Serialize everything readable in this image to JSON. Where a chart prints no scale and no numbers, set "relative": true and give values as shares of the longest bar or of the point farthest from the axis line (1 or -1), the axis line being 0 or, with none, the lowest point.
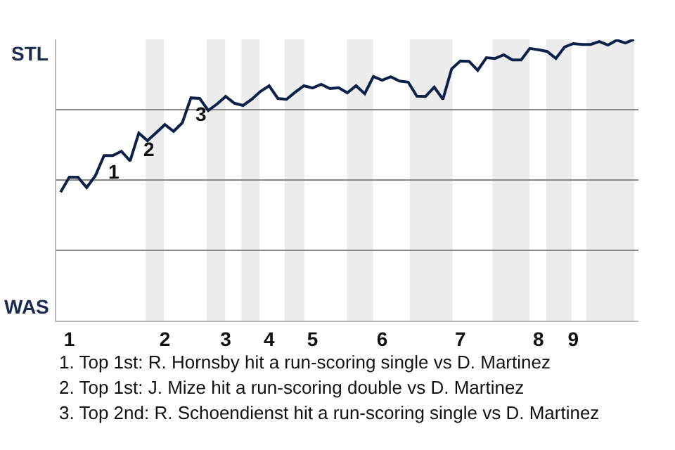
{
  "chart_data": {
    "type": "line",
    "relative": true,
    "categories": [
      null,
      "1",
      null,
      null,
      null,
      null,
      null,
      null,
      null,
      null,
      null,
      null,
      "2",
      null,
      null,
      null,
      null,
      null,
      null,
      "3",
      null,
      null,
      null,
      null,
      "4",
      null,
      null,
      null,
      null,
      "5",
      null,
      null,
      null,
      null,
      null,
      null,
      null,
      "6",
      null,
      null,
      null,
      null,
      null,
      null,
      null,
      null,
      "7",
      null,
      null,
      null,
      null,
      null,
      null,
      null,
      null,
      "8",
      null,
      null,
      null,
      "9",
      null,
      null,
      null,
      null,
      null,
      null,
      null
    ],
    "series": [
      {
        "color": "#0c2048",
        "values": [
          0.457,
          0.51,
          0.51,
          0.473,
          0.515,
          0.587,
          0.587,
          0.602,
          0.568,
          0.667,
          0.64,
          0.668,
          0.697,
          0.673,
          0.703,
          0.792,
          0.79,
          0.747,
          0.77,
          0.797,
          0.773,
          0.765,
          0.787,
          0.815,
          0.835,
          0.79,
          0.787,
          0.812,
          0.835,
          0.827,
          0.84,
          0.825,
          0.828,
          0.81,
          0.835,
          0.807,
          0.868,
          0.855,
          0.867,
          0.852,
          0.848,
          0.798,
          0.797,
          0.83,
          0.787,
          0.895,
          0.923,
          0.922,
          0.89,
          0.935,
          0.932,
          0.945,
          0.927,
          0.927,
          0.968,
          0.963,
          0.957,
          0.932,
          0.973,
          0.985,
          0.982,
          0.982,
          0.992,
          0.98,
          0.997,
          0.987,
          1
        ]
      }
    ],
    "grid": "y",
    "legend": false,
    "marker": "none",
    "line_style": "solid",
    "annotations": [
      "STL",
      "WAS",
      {
        "text": "1",
        "y": 0.587
      },
      {
        "text": "2",
        "y": 0.667
      },
      {
        "text": "3",
        "y": 0.792
      },
      "1. Top 1st: R. Hornsby hit a run-scoring single vs D. Martinez",
      "2. Top 1st: J. Mize hit a run-scoring double vs D. Martinez",
      "3. Top 2nd: R. Schoendienst hit a run-scoring single vs D. Martinez"
    ]
  }
}
